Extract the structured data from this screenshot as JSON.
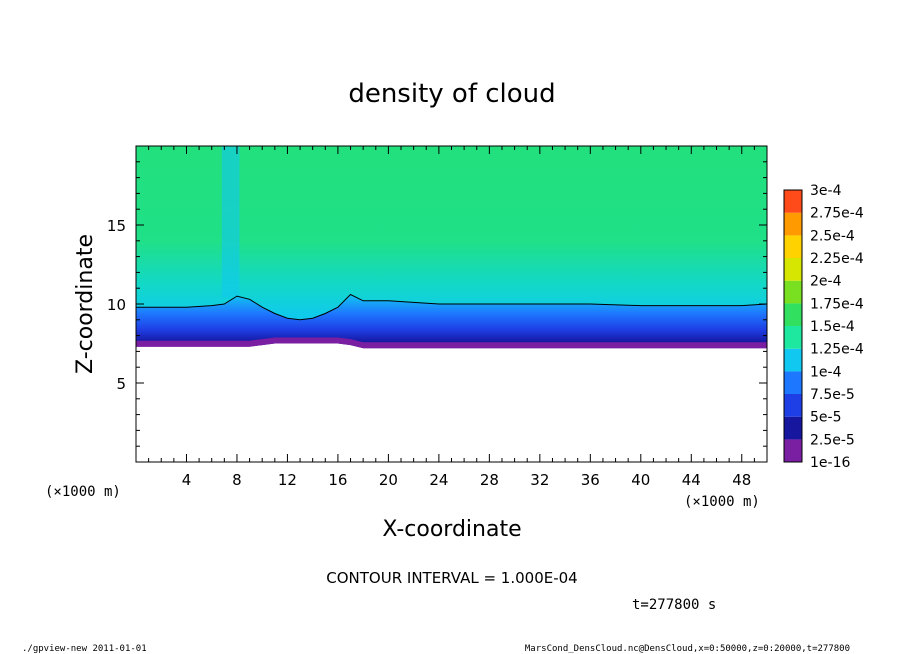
{
  "chart_data": {
    "type": "heatmap",
    "title": "density of cloud",
    "xlabel": "X-coordinate",
    "ylabel": "Z-coordinate",
    "x_unit": "(×1000 m)",
    "y_unit": "(×1000 m)",
    "xlim": [
      0,
      50
    ],
    "ylim": [
      0,
      20
    ],
    "x_ticks": [
      4,
      8,
      12,
      16,
      20,
      24,
      28,
      32,
      36,
      40,
      44,
      48
    ],
    "y_ticks": [
      5,
      10,
      15
    ],
    "colorbar": {
      "levels": [
        "1e-16",
        "2.5e-5",
        "5e-5",
        "7.5e-5",
        "1e-4",
        "1.25e-4",
        "1.5e-4",
        "1.75e-4",
        "2e-4",
        "2.25e-4",
        "2.5e-4",
        "2.75e-4",
        "3e-4"
      ],
      "colors": [
        "#7a1fa2",
        "#16169e",
        "#1f3fe6",
        "#1e78ff",
        "#10c8f0",
        "#1ee8a0",
        "#32e060",
        "#78e020",
        "#d6e600",
        "#ffd200",
        "#ff9a00",
        "#ff4a1a",
        "#ff8080"
      ]
    },
    "cloud_profile": {
      "x": [
        0,
        4,
        6,
        7,
        8,
        9,
        10,
        11,
        12,
        13,
        14,
        15,
        16,
        17,
        18,
        20,
        22,
        24,
        28,
        32,
        36,
        40,
        44,
        48,
        50
      ],
      "base": [
        7.3,
        7.3,
        7.3,
        7.3,
        7.3,
        7.3,
        7.4,
        7.5,
        7.5,
        7.5,
        7.5,
        7.5,
        7.5,
        7.4,
        7.2,
        7.2,
        7.2,
        7.2,
        7.2,
        7.2,
        7.2,
        7.2,
        7.2,
        7.2,
        7.2
      ],
      "contour_1e-4": [
        9.8,
        9.8,
        9.9,
        10.0,
        10.5,
        10.3,
        9.8,
        9.4,
        9.1,
        9.0,
        9.1,
        9.4,
        9.8,
        10.6,
        10.2,
        10.2,
        10.1,
        10.0,
        10.0,
        10.0,
        10.0,
        9.9,
        9.9,
        9.9,
        10.0
      ]
    },
    "grid": false,
    "legend": "right"
  },
  "annotations": {
    "contour_interval": "CONTOUR INTERVAL = 1.000E-04",
    "time": "t=277800 s",
    "program": "./gpview-new   2011-01-01",
    "source": "MarsCond_DensCloud.nc@DensCloud,x=0:50000,z=0:20000,t=277800"
  }
}
